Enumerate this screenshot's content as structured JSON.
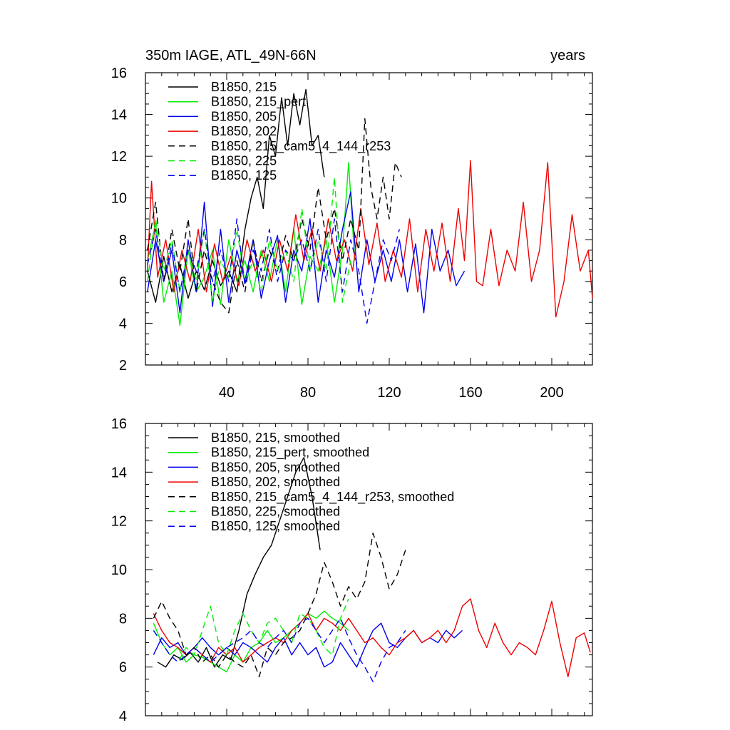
{
  "chart_data": [
    {
      "type": "line",
      "title": "350m IAGE, ATL_49N-66N",
      "right_label": "years",
      "xlim": [
        0,
        220
      ],
      "ylim": [
        2,
        16
      ],
      "xticks": [
        40,
        80,
        120,
        160,
        200
      ],
      "yticks": [
        2,
        4,
        6,
        8,
        10,
        12,
        14,
        16
      ],
      "legend_position": "top-left",
      "series": [
        {
          "name": "B1850, 215",
          "color": "#000000",
          "dash": "solid",
          "x": [
            1,
            5,
            9,
            13,
            17,
            21,
            25,
            29,
            33,
            37,
            41,
            45,
            49,
            52,
            55,
            58,
            61,
            64,
            67,
            70,
            73,
            76,
            79,
            82,
            85,
            88
          ],
          "y": [
            6.5,
            5.0,
            7.2,
            5.5,
            6.8,
            5.2,
            6.5,
            5.6,
            7.0,
            5.8,
            6.5,
            5.5,
            8.5,
            10.0,
            11.0,
            9.5,
            13.0,
            12.0,
            14.8,
            12.5,
            15.0,
            13.5,
            15.2,
            12.5,
            13.0,
            11.0
          ]
        },
        {
          "name": "B1850, 215_pert",
          "color": "#00ee00",
          "dash": "solid",
          "x": [
            1,
            5,
            9,
            13,
            17,
            21,
            25,
            29,
            33,
            37,
            41,
            45,
            49,
            53,
            57,
            61,
            65,
            69,
            73,
            77,
            81,
            85,
            89,
            93,
            97,
            100,
            103
          ],
          "y": [
            7.0,
            8.8,
            5.0,
            6.5,
            3.9,
            7.5,
            5.5,
            6.2,
            7.5,
            4.9,
            8.0,
            6.0,
            7.0,
            5.5,
            7.5,
            6.0,
            8.0,
            5.5,
            8.5,
            4.9,
            7.2,
            6.5,
            8.0,
            5.0,
            7.5,
            11.7,
            7.0
          ]
        },
        {
          "name": "B1850, 205",
          "color": "#0000ee",
          "dash": "solid",
          "x": [
            1,
            5,
            9,
            13,
            17,
            21,
            25,
            29,
            33,
            37,
            41,
            45,
            49,
            53,
            57,
            61,
            65,
            69,
            73,
            77,
            81,
            85,
            89,
            93,
            97,
            101,
            105,
            109,
            113,
            117,
            121,
            125,
            129,
            133,
            137,
            141,
            145,
            149,
            153,
            157
          ],
          "y": [
            5.5,
            8.0,
            6.0,
            7.5,
            4.5,
            8.0,
            5.5,
            9.8,
            4.8,
            8.5,
            5.0,
            7.5,
            6.0,
            8.0,
            5.2,
            7.0,
            8.2,
            5.0,
            7.5,
            6.5,
            9.0,
            5.0,
            7.5,
            6.2,
            8.5,
            10.3,
            5.5,
            8.0,
            6.0,
            7.5,
            6.0,
            8.0,
            5.5,
            7.8,
            4.5,
            8.5,
            6.5,
            7.5,
            5.8,
            6.5
          ]
        },
        {
          "name": "B1850, 202",
          "color": "#ee0000",
          "dash": "solid",
          "x": [
            1,
            3,
            6,
            10,
            14,
            18,
            22,
            26,
            30,
            34,
            38,
            42,
            46,
            50,
            54,
            58,
            62,
            66,
            70,
            74,
            78,
            82,
            86,
            90,
            94,
            98,
            102,
            106,
            110,
            114,
            118,
            122,
            126,
            130,
            134,
            138,
            142,
            146,
            150,
            154,
            157,
            160,
            163,
            166,
            170,
            174,
            178,
            182,
            186,
            190,
            194,
            198,
            202,
            206,
            210,
            214,
            218,
            220
          ],
          "y": [
            6.5,
            10.8,
            6.2,
            8.0,
            5.5,
            7.5,
            6.0,
            8.5,
            5.5,
            7.8,
            6.0,
            7.2,
            5.8,
            8.0,
            6.5,
            7.5,
            6.0,
            8.0,
            6.5,
            9.2,
            7.0,
            8.5,
            6.5,
            9.0,
            7.0,
            8.0,
            6.5,
            9.5,
            6.8,
            8.8,
            6.0,
            7.5,
            6.2,
            9.0,
            5.5,
            8.5,
            6.5,
            8.8,
            6.0,
            9.5,
            7.0,
            11.8,
            6.0,
            5.8,
            8.5,
            5.8,
            7.5,
            6.5,
            9.8,
            6.0,
            7.5,
            11.7,
            4.3,
            6.0,
            9.2,
            6.5,
            7.5,
            5.2
          ]
        },
        {
          "name": "B1850, 215_cam5_4_144_r253",
          "color": "#000000",
          "dash": "dashed",
          "x": [
            1,
            5,
            9,
            13,
            17,
            21,
            25,
            29,
            33,
            37,
            41,
            45,
            49,
            53,
            57,
            61,
            65,
            69,
            73,
            77,
            81,
            85,
            89,
            93,
            97,
            101,
            105,
            108,
            111,
            114,
            117,
            120,
            123,
            126
          ],
          "y": [
            7.5,
            9.8,
            6.0,
            8.5,
            6.5,
            9.0,
            5.5,
            7.5,
            6.0,
            5.0,
            4.5,
            7.0,
            5.5,
            8.0,
            6.0,
            7.5,
            6.5,
            8.2,
            7.0,
            9.0,
            7.5,
            10.5,
            8.0,
            9.5,
            7.0,
            9.0,
            7.5,
            13.8,
            10.5,
            9.0,
            11.0,
            9.0,
            11.7,
            11.0
          ]
        },
        {
          "name": "B1850, 225",
          "color": "#00ee00",
          "dash": "dashed",
          "x": [
            1,
            5,
            9,
            13,
            17,
            21,
            25,
            29,
            33,
            37,
            41,
            45,
            49,
            53,
            57,
            61,
            65,
            69,
            73,
            77,
            81,
            85,
            89,
            93,
            97,
            101
          ],
          "y": [
            6.0,
            9.0,
            6.5,
            8.0,
            5.5,
            7.5,
            6.0,
            8.5,
            5.0,
            7.0,
            6.2,
            8.5,
            6.0,
            7.0,
            5.5,
            8.0,
            6.5,
            7.5,
            6.0,
            9.5,
            6.5,
            8.0,
            6.5,
            11.0,
            5.0,
            7.0
          ]
        },
        {
          "name": "B1850, 125",
          "color": "#0000ee",
          "dash": "dashed",
          "x": [
            1,
            5,
            9,
            13,
            17,
            21,
            25,
            29,
            33,
            37,
            41,
            45,
            49,
            53,
            57,
            61,
            65,
            69,
            73,
            77,
            81,
            85,
            89,
            93,
            97,
            101,
            105,
            109,
            113,
            117,
            121,
            125
          ],
          "y": [
            6.8,
            8.5,
            6.0,
            7.8,
            5.5,
            7.5,
            6.5,
            8.5,
            6.0,
            7.5,
            6.0,
            9.0,
            5.8,
            7.5,
            6.5,
            8.5,
            6.0,
            7.5,
            7.0,
            8.0,
            6.5,
            8.5,
            6.0,
            9.0,
            5.5,
            8.0,
            6.5,
            4.0,
            6.0,
            8.0,
            7.0,
            8.5
          ]
        }
      ]
    },
    {
      "type": "line",
      "title": "",
      "xlim": [
        0,
        220
      ],
      "ylim": [
        4,
        16
      ],
      "xticks": [
        40,
        80,
        120,
        160,
        200
      ],
      "yticks": [
        4,
        6,
        8,
        10,
        12,
        14,
        16
      ],
      "legend_position": "top-left",
      "series": [
        {
          "name": "B1850, 215, smoothed",
          "color": "#000000",
          "dash": "solid",
          "x": [
            6,
            10,
            14,
            18,
            22,
            26,
            30,
            34,
            38,
            42,
            46,
            50,
            54,
            58,
            62,
            66,
            70,
            74,
            78,
            82,
            86
          ],
          "y": [
            6.2,
            6.0,
            6.5,
            6.3,
            6.6,
            6.2,
            6.8,
            6.0,
            6.5,
            6.3,
            7.5,
            9.0,
            9.8,
            10.5,
            11.0,
            12.0,
            13.0,
            14.0,
            14.6,
            13.0,
            10.8
          ]
        },
        {
          "name": "B1850, 215_pert, smoothed",
          "color": "#00ee00",
          "dash": "solid",
          "x": [
            4,
            8,
            12,
            16,
            20,
            24,
            28,
            32,
            36,
            40,
            44,
            48,
            52,
            56,
            60,
            64,
            68,
            72,
            76,
            80,
            84,
            88,
            92,
            96,
            100
          ],
          "y": [
            7.8,
            7.0,
            6.5,
            6.8,
            6.2,
            6.5,
            6.4,
            6.2,
            6.0,
            5.8,
            6.5,
            6.2,
            6.8,
            7.0,
            7.5,
            7.0,
            7.2,
            7.5,
            7.8,
            8.2,
            8.0,
            8.3,
            8.0,
            7.8,
            7.5
          ]
        },
        {
          "name": "B1850, 205, smoothed",
          "color": "#0000ee",
          "dash": "solid",
          "x": [
            4,
            8,
            12,
            16,
            20,
            24,
            28,
            32,
            36,
            40,
            44,
            48,
            52,
            56,
            60,
            64,
            68,
            72,
            76,
            80,
            84,
            88,
            92,
            96,
            100,
            104,
            108,
            112,
            116,
            120,
            124,
            128,
            132,
            136,
            140,
            144,
            148,
            152,
            156
          ],
          "y": [
            6.5,
            7.2,
            6.8,
            7.0,
            6.5,
            6.8,
            7.2,
            6.8,
            6.5,
            6.8,
            6.5,
            7.0,
            6.8,
            6.5,
            6.2,
            6.8,
            7.2,
            6.5,
            7.0,
            6.5,
            6.8,
            6.0,
            6.2,
            7.0,
            6.5,
            6.0,
            6.8,
            7.5,
            7.8,
            7.0,
            6.8,
            7.2,
            7.5,
            7.0,
            7.2,
            7.0,
            7.5,
            7.2,
            7.5
          ]
        },
        {
          "name": "B1850, 202, smoothed",
          "color": "#ee0000",
          "dash": "solid",
          "x": [
            4,
            8,
            12,
            16,
            20,
            24,
            28,
            32,
            36,
            40,
            44,
            48,
            52,
            56,
            60,
            64,
            68,
            72,
            76,
            80,
            84,
            88,
            92,
            96,
            100,
            104,
            108,
            112,
            116,
            120,
            124,
            128,
            132,
            136,
            140,
            144,
            148,
            152,
            156,
            160,
            164,
            168,
            172,
            176,
            180,
            184,
            188,
            192,
            196,
            200,
            204,
            208,
            212,
            216,
            219
          ],
          "y": [
            8.2,
            7.5,
            7.0,
            6.8,
            6.5,
            6.8,
            6.5,
            6.2,
            6.8,
            6.5,
            6.8,
            6.2,
            6.5,
            6.8,
            7.0,
            7.2,
            7.0,
            7.5,
            7.8,
            8.2,
            7.5,
            8.0,
            7.8,
            7.5,
            8.0,
            7.5,
            7.0,
            7.2,
            6.8,
            6.5,
            7.0,
            7.2,
            7.5,
            7.0,
            7.2,
            7.5,
            7.0,
            7.5,
            8.5,
            8.8,
            7.5,
            6.8,
            7.8,
            7.0,
            6.5,
            7.0,
            6.8,
            6.5,
            7.5,
            8.7,
            7.0,
            5.6,
            7.2,
            7.4,
            6.6
          ]
        },
        {
          "name": "B1850, 215_cam5_4_144_r253, smoothed",
          "color": "#000000",
          "dash": "dashed",
          "x": [
            4,
            8,
            12,
            16,
            20,
            24,
            28,
            32,
            36,
            40,
            44,
            48,
            52,
            56,
            60,
            64,
            68,
            72,
            76,
            80,
            84,
            88,
            92,
            96,
            100,
            104,
            108,
            112,
            116,
            120,
            124,
            128
          ],
          "y": [
            8.0,
            8.7,
            8.0,
            7.5,
            6.5,
            6.8,
            6.2,
            6.5,
            6.0,
            6.5,
            6.2,
            6.0,
            6.5,
            5.6,
            6.8,
            6.5,
            7.0,
            7.2,
            7.5,
            8.2,
            9.0,
            10.3,
            9.5,
            8.5,
            9.3,
            8.8,
            9.5,
            11.5,
            10.5,
            9.2,
            9.8,
            10.8
          ]
        },
        {
          "name": "B1850, 225, smoothed",
          "color": "#00ee00",
          "dash": "dashed",
          "x": [
            4,
            8,
            12,
            16,
            20,
            24,
            28,
            32,
            36,
            40,
            44,
            48,
            52,
            56,
            60,
            64,
            68,
            72,
            76,
            80,
            84,
            88,
            92,
            96,
            100
          ],
          "y": [
            7.5,
            7.0,
            6.5,
            6.2,
            6.8,
            6.5,
            7.5,
            8.5,
            7.0,
            6.5,
            7.5,
            8.2,
            7.5,
            7.0,
            7.8,
            8.0,
            7.5,
            7.0,
            8.2,
            8.0,
            7.5,
            6.8,
            6.5,
            8.0,
            8.8
          ]
        },
        {
          "name": "B1850, 125, smoothed",
          "color": "#0000ee",
          "dash": "dashed",
          "x": [
            4,
            8,
            12,
            16,
            20,
            24,
            28,
            32,
            36,
            40,
            44,
            48,
            52,
            56,
            60,
            64,
            68,
            72,
            76,
            80,
            84,
            88,
            92,
            96,
            100,
            104,
            108,
            112,
            116,
            120,
            124,
            128
          ],
          "y": [
            7.5,
            7.0,
            6.5,
            6.2,
            6.5,
            6.8,
            6.5,
            6.2,
            6.5,
            6.8,
            7.0,
            7.2,
            7.5,
            7.0,
            6.8,
            7.2,
            7.5,
            7.0,
            7.8,
            8.0,
            7.5,
            7.0,
            7.5,
            8.0,
            7.2,
            6.5,
            6.0,
            5.4,
            6.2,
            6.8,
            7.0,
            7.5
          ]
        }
      ]
    }
  ]
}
